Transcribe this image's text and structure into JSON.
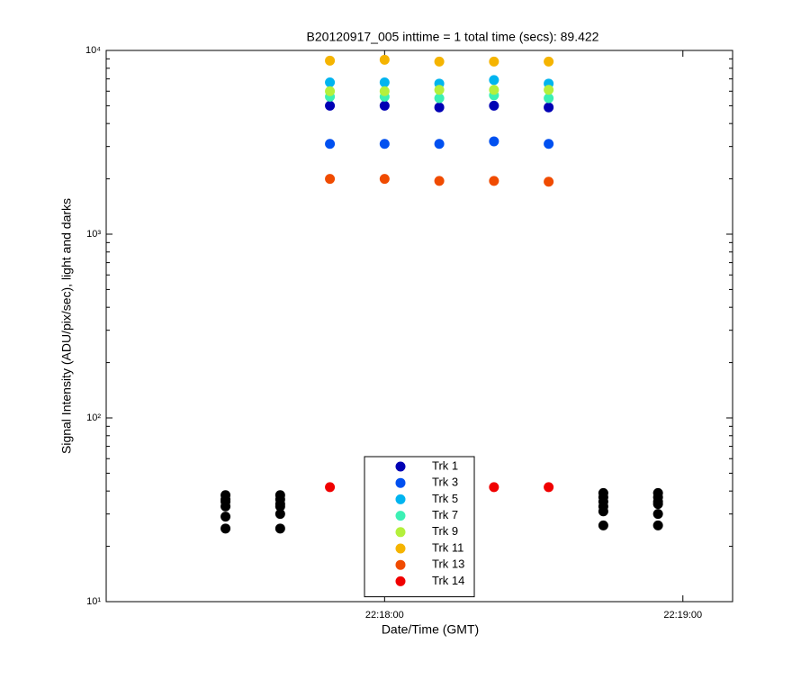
{
  "chart_data": {
    "type": "scatter",
    "title": "B20120917_005 inttime = 1 total time (secs): 89.422",
    "xlabel": "Date/Time (GMT)",
    "ylabel": "Signal Intensity (ADU/pix/sec), light and darks",
    "x": [
      "22:17:28",
      "22:17:39",
      "22:17:49",
      "22:18:00",
      "22:18:11",
      "22:18:22",
      "22:18:33",
      "22:18:44",
      "22:18:55"
    ],
    "xlim": [
      "22:17:04",
      "22:19:10"
    ],
    "xticks": [
      "22:18:00",
      "22:19:00"
    ],
    "ylim": [
      10,
      10000
    ],
    "yticks": [
      {
        "value": 10,
        "label": "10¹"
      },
      {
        "value": 100,
        "label": "10²"
      },
      {
        "value": 1000,
        "label": "10³"
      },
      {
        "value": 10000,
        "label": "10⁴"
      }
    ],
    "log_y": true,
    "grid": false,
    "series": [
      {
        "name": "Trk 1",
        "color": "#0000b4",
        "values": [
          null,
          null,
          5000,
          5000,
          4900,
          5000,
          4900,
          null,
          null
        ]
      },
      {
        "name": "Trk 3",
        "color": "#0050f0",
        "values": [
          null,
          null,
          3100,
          3100,
          3100,
          3200,
          3100,
          null,
          null
        ]
      },
      {
        "name": "Trk 5",
        "color": "#00b4f0",
        "values": [
          null,
          null,
          6700,
          6700,
          6600,
          6900,
          6600,
          null,
          null
        ]
      },
      {
        "name": "Trk 7",
        "color": "#3cf0b4",
        "values": [
          null,
          null,
          5600,
          5600,
          5500,
          5700,
          5500,
          null,
          null
        ]
      },
      {
        "name": "Trk 9",
        "color": "#b4f03c",
        "values": [
          null,
          null,
          6000,
          6000,
          6100,
          6100,
          6100,
          null,
          null
        ]
      },
      {
        "name": "Trk 11",
        "color": "#f5b400",
        "values": [
          null,
          null,
          8800,
          8900,
          8700,
          8700,
          8700,
          null,
          null
        ]
      },
      {
        "name": "Trk 13",
        "color": "#f04b00",
        "values": [
          null,
          null,
          2000,
          2000,
          1950,
          1950,
          1930,
          null,
          null
        ]
      },
      {
        "name": "Trk 14",
        "color": "#f00000",
        "values": [
          null,
          null,
          42,
          null,
          null,
          42,
          42,
          null,
          null
        ]
      },
      {
        "color": "#000000",
        "values": [
          38,
          38,
          null,
          null,
          null,
          null,
          null,
          39,
          39
        ]
      },
      {
        "color": "#000000",
        "values": [
          36,
          36,
          null,
          null,
          null,
          null,
          null,
          37,
          37
        ]
      },
      {
        "color": "#000000",
        "values": [
          35,
          34,
          null,
          null,
          null,
          null,
          null,
          35,
          35
        ]
      },
      {
        "color": "#000000",
        "values": [
          33,
          33,
          null,
          null,
          null,
          null,
          null,
          33,
          34
        ]
      },
      {
        "color": "#000000",
        "values": [
          29,
          30,
          null,
          null,
          null,
          null,
          null,
          31,
          30
        ]
      },
      {
        "color": "#000000",
        "values": [
          25,
          25,
          null,
          null,
          null,
          null,
          null,
          26,
          26
        ]
      }
    ]
  }
}
